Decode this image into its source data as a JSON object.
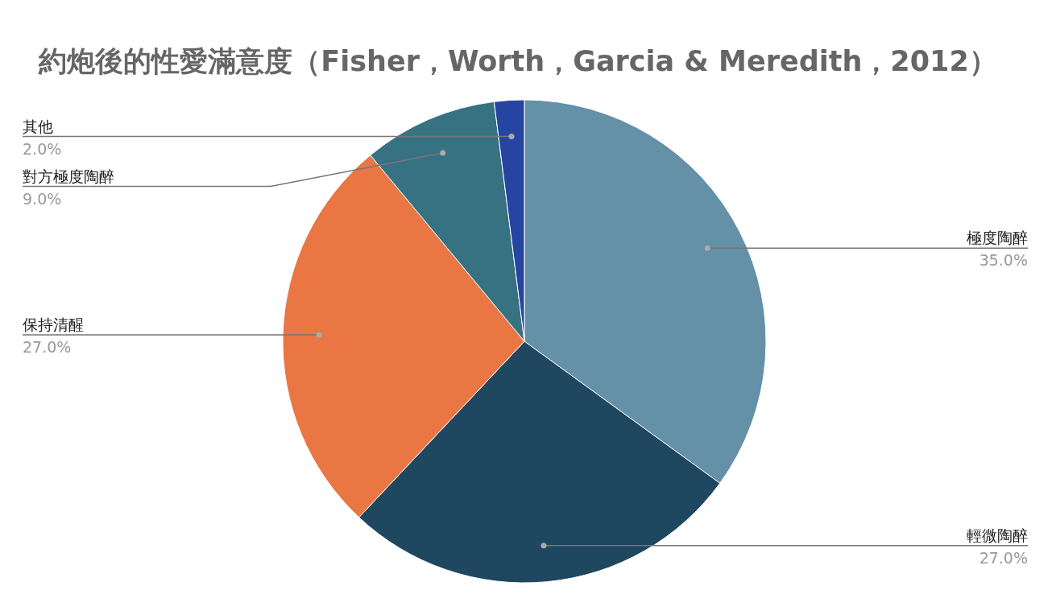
{
  "chart_data": {
    "type": "pie",
    "title": "約炮後的性愛滿意度（Fisher，Worth，Garcia & Meredith，2012）",
    "categories": [
      "極度陶醉",
      "輕微陶醉",
      "保持清醒",
      "對方極度陶醉",
      "其他"
    ],
    "values": [
      35,
      27,
      27,
      9,
      2
    ],
    "colors": [
      "#6490a8",
      "#1f4760",
      "#ea7643",
      "#377283",
      "#2545a0"
    ],
    "value_labels": [
      "35.0%",
      "27.0%",
      "27.0%",
      "9.0%",
      "2.0%"
    ]
  }
}
